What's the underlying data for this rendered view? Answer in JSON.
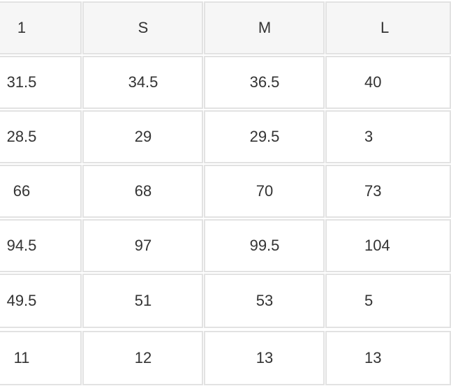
{
  "table": {
    "header": [
      "1",
      "S",
      "M",
      "L"
    ],
    "rows": [
      [
        "31.5",
        "34.5",
        "36.5",
        "40"
      ],
      [
        "28.5",
        "29",
        "29.5",
        "3"
      ],
      [
        "66",
        "68",
        "70",
        "73"
      ],
      [
        "94.5",
        "97",
        "99.5",
        "104"
      ],
      [
        "49.5",
        "51",
        "53",
        "5"
      ],
      [
        "11",
        "12",
        "13",
        "13"
      ]
    ]
  }
}
